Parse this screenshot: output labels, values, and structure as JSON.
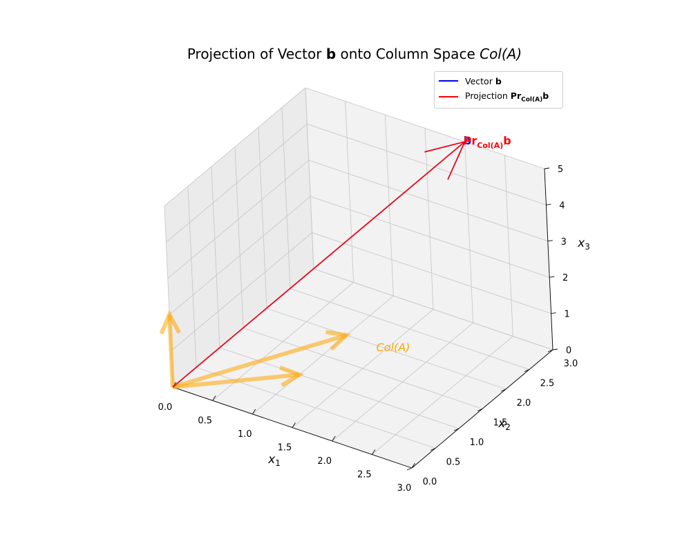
{
  "title": {
    "prefix": "Projection of Vector ",
    "vector": "b",
    "middle": " onto Column Space ",
    "colspace": "Col(A)"
  },
  "legend": {
    "vector_b": {
      "prefix": "Vector ",
      "bold": "b",
      "color": "#0000ff"
    },
    "projection": {
      "prefix": "Projection ",
      "bold": "Pr",
      "sub": "Col(A)",
      "bold_end": "b",
      "color": "#ff0000"
    }
  },
  "chart_data": {
    "type": "3d-quiver",
    "title": "Projection of Vector b onto Column Space Col(A)",
    "xlabel": "x1",
    "ylabel": "x2",
    "zlabel": "x3",
    "xlim": [
      0,
      3
    ],
    "ylim": [
      0,
      3
    ],
    "zlim": [
      0,
      5
    ],
    "xticks": [
      "0.0",
      "0.5",
      "1.0",
      "1.5",
      "2.0",
      "2.5",
      "3.0"
    ],
    "yticks": [
      "0.0",
      "0.5",
      "1.0",
      "1.5",
      "2.0",
      "2.5",
      "3.0"
    ],
    "zticks": [
      "0",
      "1",
      "2",
      "3",
      "4",
      "5"
    ],
    "grid": true,
    "legend_position": "top-right",
    "vectors": [
      {
        "name": "Vector b",
        "start": [
          0,
          0,
          0
        ],
        "end": [
          2,
          3,
          5
        ],
        "color": "#0000ff"
      },
      {
        "name": "Projection Pr_Col(A) b",
        "start": [
          0,
          0,
          0
        ],
        "end": [
          2,
          3,
          5
        ],
        "color": "#ff0000"
      }
    ],
    "column_space_vectors": [
      {
        "start": [
          0,
          0,
          0
        ],
        "end": [
          0,
          0,
          2
        ],
        "color": "#ffa500"
      },
      {
        "start": [
          0,
          0,
          0
        ],
        "end": [
          1,
          1,
          0
        ],
        "color": "#ffa500"
      },
      {
        "start": [
          0,
          0,
          0
        ],
        "end": [
          1,
          2,
          0
        ],
        "color": "#ffa500"
      }
    ],
    "annotations": [
      {
        "text": "b",
        "at": [
          2,
          3,
          5
        ],
        "color": "#0000ff"
      },
      {
        "text": "Pr_Col(A) b",
        "at": [
          2,
          3,
          5
        ],
        "color": "#ff0000"
      },
      {
        "text": "Col(A)",
        "at": [
          1.5,
          1.5,
          0
        ],
        "color": "#ffa500"
      }
    ]
  }
}
